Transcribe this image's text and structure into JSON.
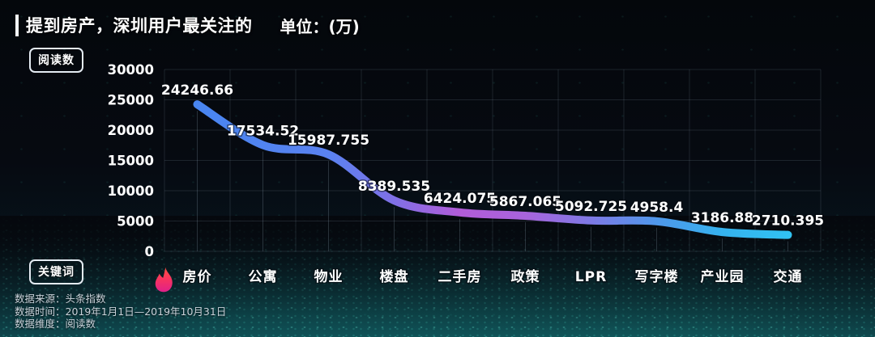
{
  "header": {
    "title": "提到房产，深圳用户最关注的",
    "unit_label": "单位：(万)"
  },
  "badges": {
    "y_axis": "阅读数",
    "x_axis": "关键词"
  },
  "footer": {
    "lines": [
      "数据来源：头条指数",
      "数据时间：2019年1月1日—2019年10月31日",
      "数据维度：阅读数"
    ]
  },
  "chart_data": {
    "type": "line",
    "title": "提到房产，深圳用户最关注的",
    "unit": "万",
    "ylabel": "阅读数",
    "xlabel": "关键词",
    "categories": [
      "房价",
      "公寓",
      "物业",
      "楼盘",
      "二手房",
      "政策",
      "LPR",
      "写字楼",
      "产业园",
      "交通"
    ],
    "values": [
      24246.66,
      17534.52,
      15987.755,
      8389.535,
      6424.075,
      5867.065,
      5092.725,
      4958.4,
      3186.88,
      2710.395
    ],
    "value_labels": [
      "24246.66",
      "17534.52",
      "15987.755",
      "8389.535",
      "6424.075",
      "5867.065",
      "5092.725",
      "4958.4",
      "3186.88",
      "2710.395"
    ],
    "ylim": [
      0,
      30000
    ],
    "ytick_step": 5000,
    "grid": true,
    "legend_position": "none",
    "marker_icon": "flame-icon",
    "line_gradient": [
      {
        "offset": 0,
        "color": "#4486f0"
      },
      {
        "offset": 0.25,
        "color": "#5a82f0"
      },
      {
        "offset": 0.35,
        "color": "#8070e6"
      },
      {
        "offset": 0.45,
        "color": "#b25cd8"
      },
      {
        "offset": 0.55,
        "color": "#a864dc"
      },
      {
        "offset": 0.65,
        "color": "#7e79e4"
      },
      {
        "offset": 0.75,
        "color": "#4f97ea"
      },
      {
        "offset": 0.85,
        "color": "#35b2ee"
      },
      {
        "offset": 1,
        "color": "#2fcaf4"
      }
    ],
    "flame_gradient": [
      {
        "offset": 0,
        "color": "#ff5040"
      },
      {
        "offset": 0.5,
        "color": "#f73361"
      },
      {
        "offset": 1,
        "color": "#e0218a"
      }
    ]
  },
  "colors": {
    "background_top": "#04070b",
    "background_bottom": "#0d3a42",
    "text": "#ffffff",
    "grid": "rgba(160,185,210,0.15)",
    "dropline": "rgba(170,190,210,0.22)",
    "footer_text": "#c9d2da",
    "particle": "#35d2bc"
  }
}
